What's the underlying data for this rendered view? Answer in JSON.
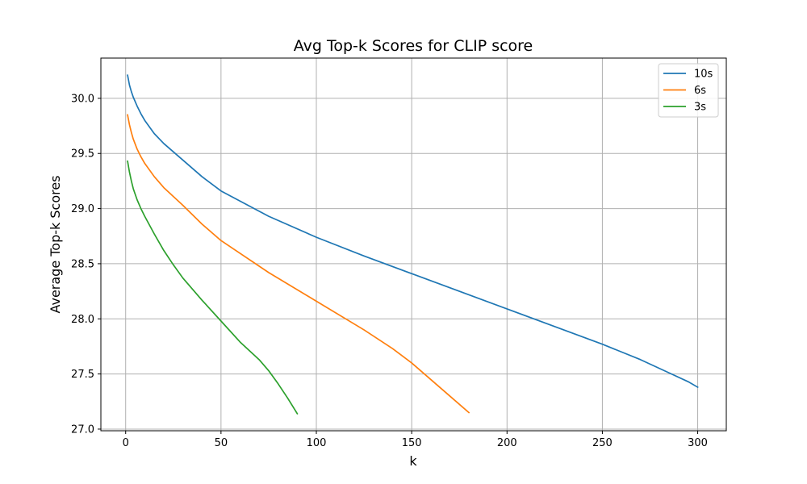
{
  "chart_data": {
    "type": "line",
    "title": "Avg Top-k Scores for CLIP score",
    "xlabel": "k",
    "ylabel": "Average Top-k Scores",
    "xlim": [
      -13,
      315
    ],
    "ylim": [
      26.985,
      30.365
    ],
    "xticks": [
      0,
      50,
      100,
      150,
      200,
      250,
      300
    ],
    "yticks": [
      27.0,
      27.5,
      28.0,
      28.5,
      29.0,
      29.5,
      30.0
    ],
    "xtick_labels": [
      "0",
      "50",
      "100",
      "150",
      "200",
      "250",
      "300"
    ],
    "ytick_labels": [
      "27.0",
      "27.5",
      "28.0",
      "28.5",
      "29.0",
      "29.5",
      "30.0"
    ],
    "grid": true,
    "legend_position": "top-right",
    "series": [
      {
        "name": "10s",
        "color": "#1f77b4",
        "x": [
          1,
          2,
          3,
          4,
          6,
          8,
          10,
          15,
          20,
          30,
          40,
          50,
          75,
          100,
          125,
          150,
          175,
          200,
          225,
          250,
          270,
          285,
          295,
          300
        ],
        "y": [
          30.21,
          30.12,
          30.06,
          30.01,
          29.93,
          29.86,
          29.8,
          29.68,
          29.59,
          29.44,
          29.29,
          29.16,
          28.93,
          28.74,
          28.57,
          28.41,
          28.25,
          28.09,
          27.93,
          27.77,
          27.63,
          27.51,
          27.43,
          27.38
        ]
      },
      {
        "name": "6s",
        "color": "#ff7f0e",
        "x": [
          1,
          2,
          3,
          4,
          6,
          8,
          10,
          15,
          20,
          30,
          40,
          50,
          75,
          100,
          125,
          140,
          150,
          160,
          170,
          180
        ],
        "y": [
          29.85,
          29.76,
          29.69,
          29.63,
          29.54,
          29.47,
          29.41,
          29.29,
          29.19,
          29.03,
          28.86,
          28.71,
          28.42,
          28.16,
          27.9,
          27.73,
          27.6,
          27.45,
          27.3,
          27.15
        ]
      },
      {
        "name": "3s",
        "color": "#2ca02c",
        "x": [
          1,
          2,
          3,
          4,
          6,
          8,
          10,
          15,
          20,
          25,
          30,
          40,
          50,
          60,
          70,
          75,
          80,
          85,
          90
        ],
        "y": [
          29.43,
          29.33,
          29.25,
          29.18,
          29.08,
          29.0,
          28.93,
          28.77,
          28.62,
          28.49,
          28.37,
          28.17,
          27.98,
          27.79,
          27.63,
          27.53,
          27.41,
          27.28,
          27.14
        ]
      }
    ]
  }
}
